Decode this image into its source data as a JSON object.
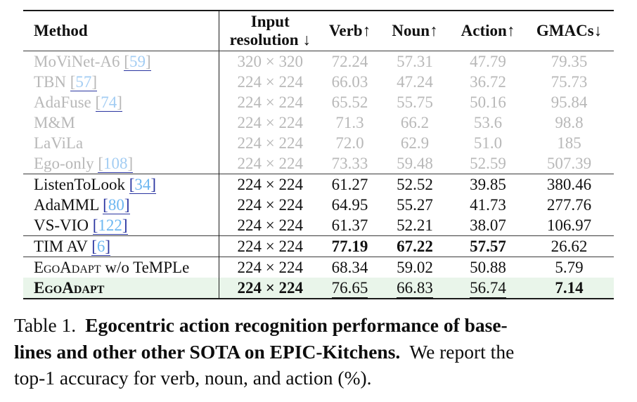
{
  "colors": {
    "dim_text": "#b8b8b8",
    "cite_number": "#6db7f1",
    "cite_number_dim": "#a3cdf3",
    "cite_bracket": "#2a35a0",
    "cite_underline": "#2a35a0",
    "highlight_bg": "#e9f5ea"
  },
  "table": {
    "columns": [
      {
        "key": "method",
        "label": "Method"
      },
      {
        "key": "res",
        "label_lines": [
          "Input",
          "resolution ↓"
        ]
      },
      {
        "key": "verb",
        "label": "Verb↑"
      },
      {
        "key": "noun",
        "label": "Noun↑"
      },
      {
        "key": "action",
        "label": "Action↑"
      },
      {
        "key": "gmacs",
        "label": "GMACs↓"
      }
    ],
    "rows": [
      {
        "method": "MoViNet-A6",
        "cite": "59",
        "res": "320 × 320",
        "verb": "72.24",
        "noun": "57.31",
        "action": "47.79",
        "gmacs": "79.35",
        "dim": true
      },
      {
        "method": "TBN",
        "cite": "57",
        "res": "224 × 224",
        "verb": "66.03",
        "noun": "47.24",
        "action": "36.72",
        "gmacs": "75.73",
        "dim": true
      },
      {
        "method": "AdaFuse",
        "cite": "74",
        "res": "224 × 224",
        "verb": "65.52",
        "noun": "55.75",
        "action": "50.16",
        "gmacs": "95.84",
        "dim": true
      },
      {
        "method": "M&M",
        "res": "224 × 224",
        "verb": "71.3",
        "noun": "66.2",
        "action": "53.6",
        "gmacs": "98.8",
        "dim": true
      },
      {
        "method": "LaViLa",
        "res": "224 × 224",
        "verb": "72.0",
        "noun": "62.9",
        "action": "51.0",
        "gmacs": "185",
        "dim": true
      },
      {
        "method": "Ego-only",
        "cite": "108",
        "res": "224 × 224",
        "verb": "73.33",
        "noun": "59.48",
        "action": "52.59",
        "gmacs": "507.39",
        "dim": true
      },
      {
        "method": "ListenToLook",
        "cite": "34",
        "res": "224 × 224",
        "verb": "61.27",
        "noun": "52.52",
        "action": "39.85",
        "gmacs": "380.46",
        "rule_above": true
      },
      {
        "method": "AdaMML",
        "cite": "80",
        "res": "224 × 224",
        "verb": "64.95",
        "noun": "55.27",
        "action": "41.73",
        "gmacs": "277.76"
      },
      {
        "method": "VS-VIO",
        "cite": "122",
        "res": "224 × 224",
        "verb": "61.37",
        "noun": "52.21",
        "action": "38.07",
        "gmacs": "106.97"
      },
      {
        "method": "TIM AV",
        "cite": "6",
        "res": "224 × 224",
        "verb": "77.19",
        "noun": "67.22",
        "action": "57.57",
        "gmacs": "26.62",
        "rule_above": true,
        "bold": [
          "verb",
          "noun",
          "action"
        ]
      },
      {
        "method": "EgoAdapt",
        "suffix": " w/o TeMPLe",
        "smallcaps": true,
        "res": "224 × 224",
        "verb": "68.34",
        "noun": "59.02",
        "action": "50.88",
        "gmacs": "5.79",
        "rule_above": true
      },
      {
        "method": "EgoAdapt",
        "smallcaps": true,
        "highlight": true,
        "res": "224 × 224",
        "verb": "76.65",
        "noun": "66.83",
        "action": "56.74",
        "gmacs": "7.14",
        "bold": [
          "method",
          "res",
          "gmacs"
        ],
        "underline": [
          "verb",
          "noun",
          "action"
        ]
      }
    ]
  },
  "caption": {
    "line1_prefix": "Table 1.",
    "line1_bold": "Egocentric action recognition performance of base-",
    "line2_bold": "lines and other other SOTA on EPIC-Kitchens.",
    "line2_rest": "We report the",
    "line3": "top-1 accuracy for verb, noun, and action (%)."
  }
}
